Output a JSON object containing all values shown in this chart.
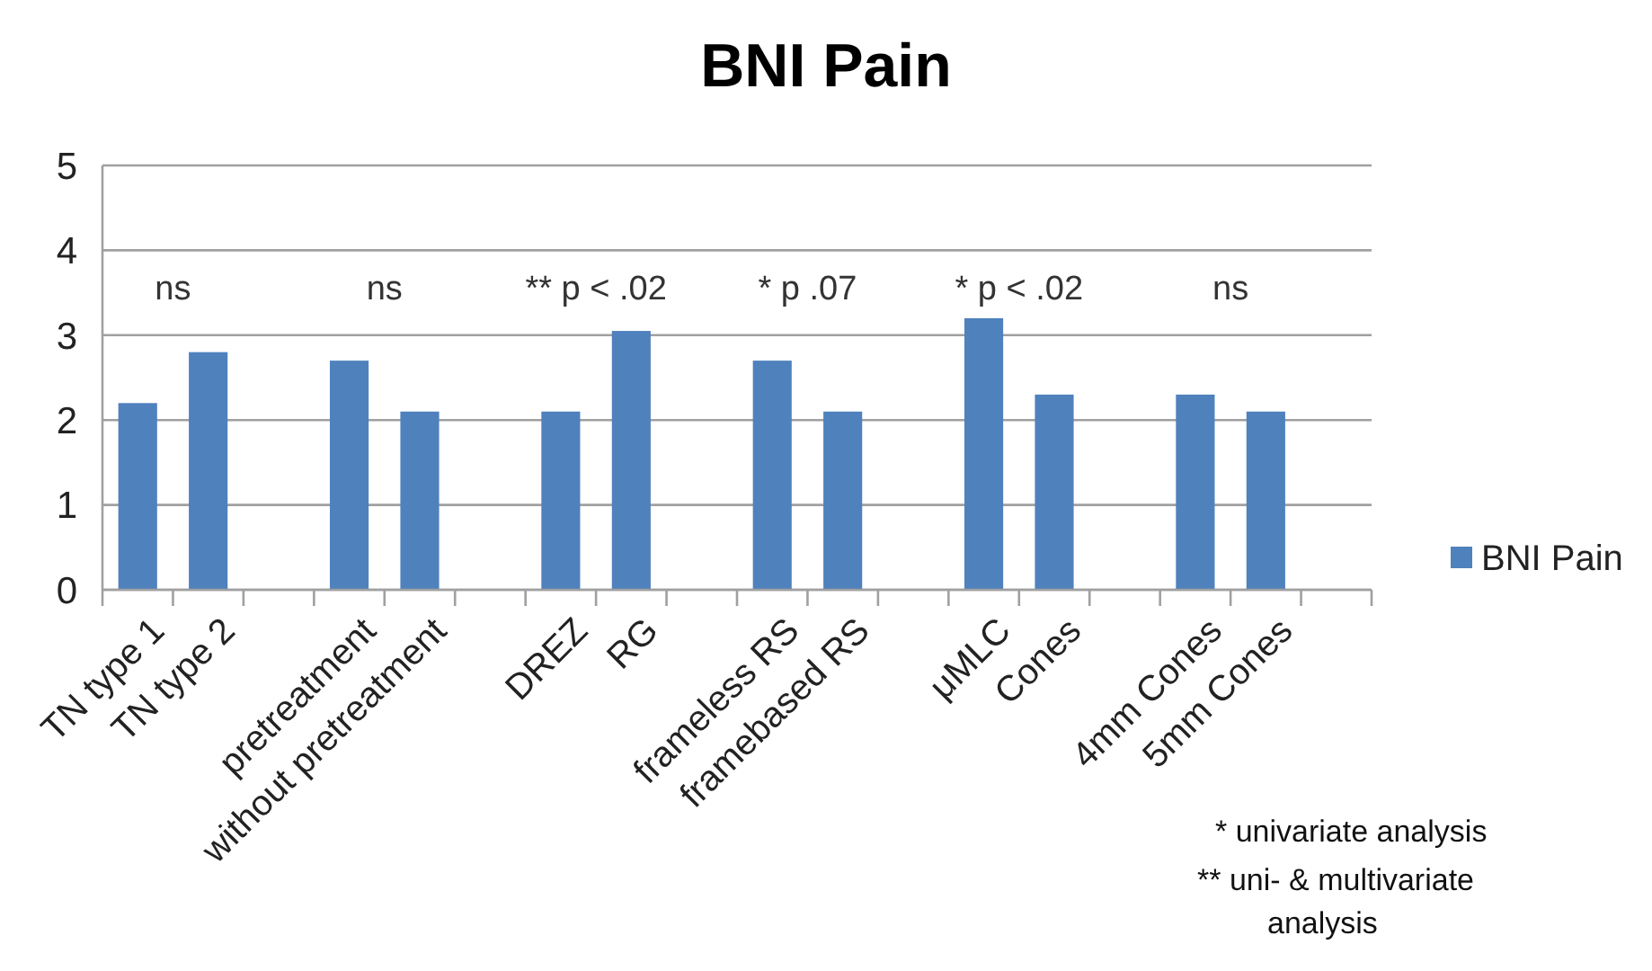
{
  "chart_data": {
    "type": "bar",
    "title": "BNI Pain",
    "categories": [
      "TN type 1",
      "TN type 2",
      null,
      "pretreatment",
      "without pretreatment",
      null,
      "DREZ",
      "RG",
      null,
      "frameless RS",
      "framebased RS",
      null,
      "μMLC",
      "Cones",
      null,
      "4mm Cones",
      "5mm Cones",
      null
    ],
    "series": [
      {
        "name": "BNI Pain",
        "color": "#4f81bd",
        "values": [
          2.2,
          2.8,
          null,
          2.7,
          2.1,
          null,
          2.1,
          3.05,
          null,
          2.7,
          2.1,
          null,
          3.2,
          2.3,
          null,
          2.3,
          2.1,
          null
        ]
      }
    ],
    "ylim": [
      0,
      5
    ],
    "yticks": [
      0,
      1,
      2,
      3,
      4,
      5
    ],
    "grid": "y",
    "legend": "right",
    "annotations": [
      "ns",
      "ns",
      "** p < .02",
      "* p .07",
      "* p < .02",
      "ns",
      "* univariate analysis",
      "** uni- & multivariate analysis"
    ]
  }
}
